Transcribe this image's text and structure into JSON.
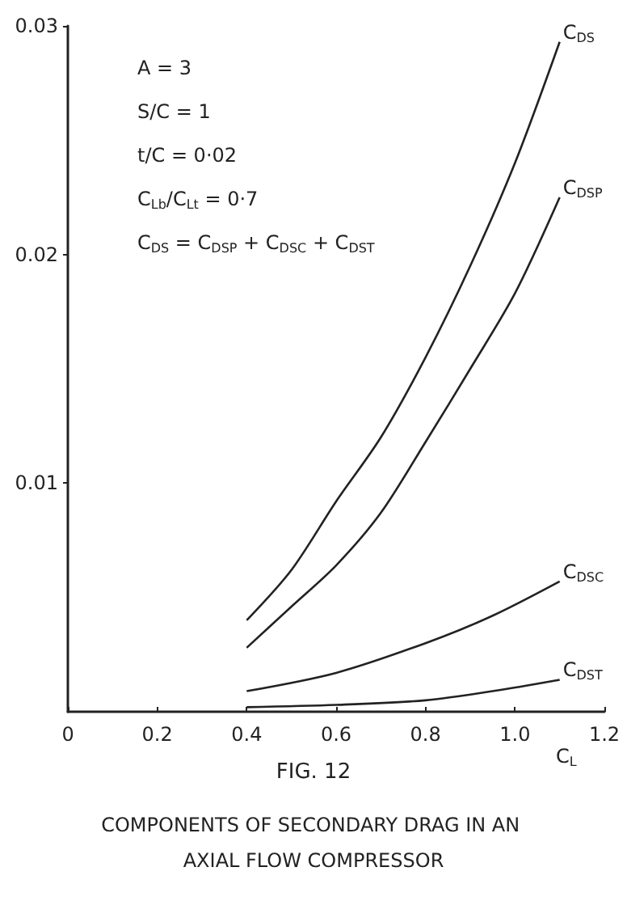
{
  "chart_data": {
    "type": "line",
    "title": "FIG. 12",
    "subtitle": "COMPONENTS OF SECONDARY DRAG IN AN AXIAL FLOW COMPRESSOR",
    "xlabel": "C$_{L}$",
    "annotations": [
      "A = 3",
      "S/C = 1",
      "t/C = 0·02",
      "C$_{Lb}$/C$_{Lt}$ = 0·7",
      "C$_{DS}$ = C$_{DSP}$ + C$_{DSC}$ + C$_{DST}$"
    ],
    "series": [
      {
        "name": "C$_{DS}$",
        "color": "#222222",
        "x": [
          0.4,
          0.5,
          0.6,
          0.7,
          0.8,
          0.9,
          1.0,
          1.1
        ],
        "values": [
          0.004,
          0.0062,
          0.0092,
          0.012,
          0.0155,
          0.0195,
          0.024,
          0.0293
        ]
      },
      {
        "name": "C$_{DSP}$",
        "color": "#222222",
        "x": [
          0.4,
          0.5,
          0.6,
          0.7,
          0.8,
          0.9,
          1.0,
          1.1
        ],
        "values": [
          0.0028,
          0.0046,
          0.0064,
          0.0087,
          0.0118,
          0.015,
          0.0183,
          0.0225
        ]
      },
      {
        "name": "C$_{DSC}$",
        "color": "#222222",
        "x": [
          0.4,
          0.6,
          0.8,
          0.95,
          1.1
        ],
        "values": [
          0.0009,
          0.0017,
          0.003,
          0.0042,
          0.0057
        ]
      },
      {
        "name": "C$_{DST}$",
        "color": "#222222",
        "x": [
          0.4,
          0.6,
          0.8,
          0.95,
          1.1
        ],
        "values": [
          0.0002,
          0.0003,
          0.0005,
          0.0009,
          0.0014
        ]
      }
    ],
    "xlim": [
      0,
      1.2
    ],
    "xticks": [
      0,
      0.2,
      0.4,
      0.6,
      0.8,
      {
        "value": 1.0,
        "label": "1.0"
      },
      1.2
    ],
    "ylim": [
      0,
      0.03
    ],
    "yticks": [
      0.01,
      0.02,
      0.03
    ],
    "grid": false,
    "legend": false,
    "marker": "none",
    "line_style": "solid"
  }
}
